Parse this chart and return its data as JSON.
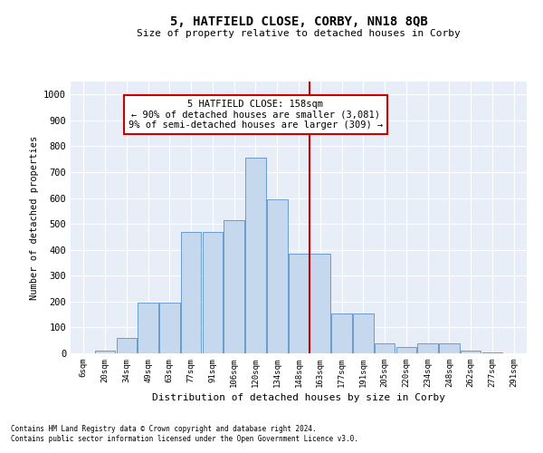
{
  "title": "5, HATFIELD CLOSE, CORBY, NN18 8QB",
  "subtitle": "Size of property relative to detached houses in Corby",
  "xlabel": "Distribution of detached houses by size in Corby",
  "ylabel": "Number of detached properties",
  "footnote1": "Contains HM Land Registry data © Crown copyright and database right 2024.",
  "footnote2": "Contains public sector information licensed under the Open Government Licence v3.0.",
  "bar_labels": [
    "6sqm",
    "20sqm",
    "34sqm",
    "49sqm",
    "63sqm",
    "77sqm",
    "91sqm",
    "106sqm",
    "120sqm",
    "134sqm",
    "148sqm",
    "163sqm",
    "177sqm",
    "191sqm",
    "205sqm",
    "220sqm",
    "234sqm",
    "248sqm",
    "262sqm",
    "277sqm",
    "291sqm"
  ],
  "bar_heights": [
    0,
    12,
    60,
    195,
    195,
    470,
    470,
    515,
    755,
    595,
    385,
    385,
    155,
    155,
    40,
    25,
    40,
    40,
    10,
    5,
    0
  ],
  "bar_color": "#c5d8ee",
  "bar_edge_color": "#5b8fc9",
  "bg_color": "#e8eef7",
  "grid_color": "#ffffff",
  "vline_color": "#cc0000",
  "annotation_text": "5 HATFIELD CLOSE: 158sqm\n← 90% of detached houses are smaller (3,081)\n9% of semi-detached houses are larger (309) →",
  "annotation_box_color": "#cc0000",
  "ylim": [
    0,
    1050
  ],
  "yticks": [
    0,
    100,
    200,
    300,
    400,
    500,
    600,
    700,
    800,
    900,
    1000
  ]
}
